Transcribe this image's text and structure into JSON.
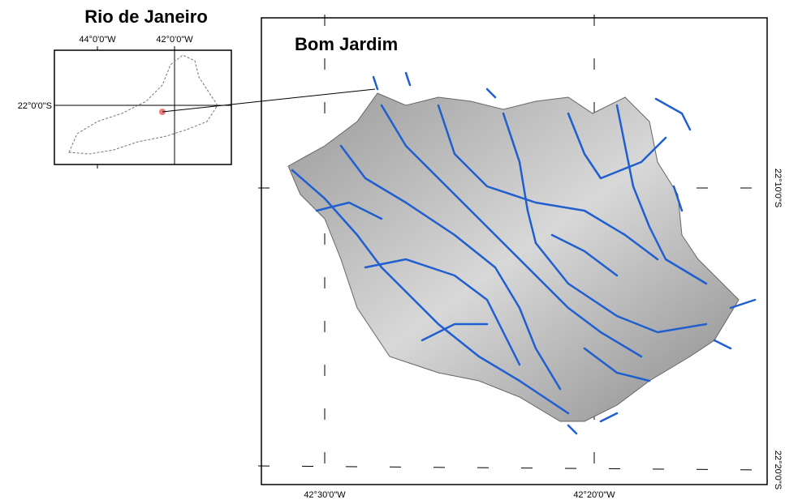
{
  "inset": {
    "title": "Rio de Janeiro",
    "x_labels": [
      "44°0'0\"W",
      "42°0'0\"W"
    ],
    "y_labels": [
      "22°0'0\"S"
    ]
  },
  "main": {
    "title": "Bom Jardim",
    "x_labels": [
      "42°30'0\"W",
      "42°20'0\"W"
    ],
    "y_labels": [
      "22°10'0\"S",
      "22°20'0\"S"
    ]
  }
}
